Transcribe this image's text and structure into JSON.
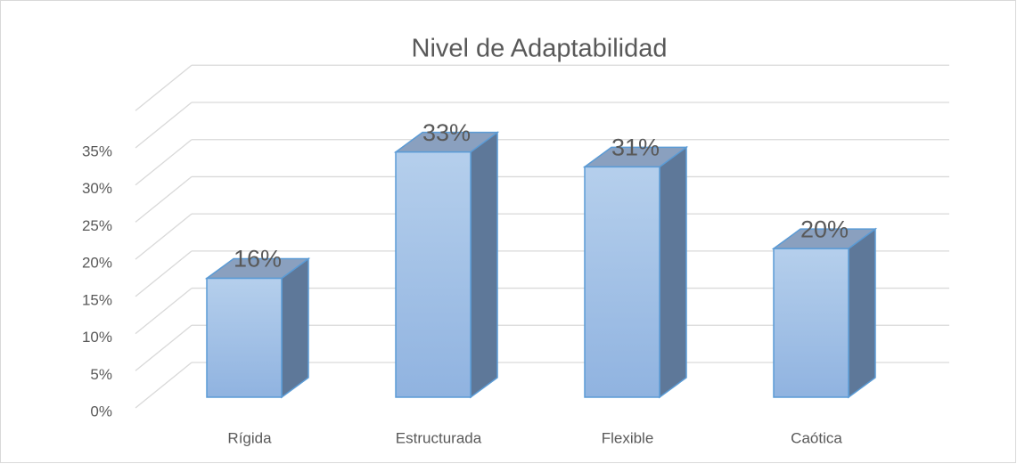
{
  "chart_data": {
    "type": "bar3d",
    "title": "Nivel de Adaptabilidad",
    "categories": [
      "Rígida",
      "Estructurada",
      "Flexible",
      "Caótica"
    ],
    "values": [
      16,
      33,
      31,
      20
    ],
    "value_labels": [
      "16%",
      "33%",
      "31%",
      "20%"
    ],
    "color": "#9dbde6",
    "ylim": [
      0,
      40
    ],
    "yticks": [
      {
        "value": 0,
        "label": "0%"
      },
      {
        "value": 5,
        "label": "5%"
      },
      {
        "value": 10,
        "label": "10%"
      },
      {
        "value": 15,
        "label": "15%"
      },
      {
        "value": 20,
        "label": "20%"
      },
      {
        "value": 25,
        "label": "25%"
      },
      {
        "value": 30,
        "label": "30%"
      },
      {
        "value": 35,
        "label": "35%"
      }
    ],
    "grid": true
  }
}
